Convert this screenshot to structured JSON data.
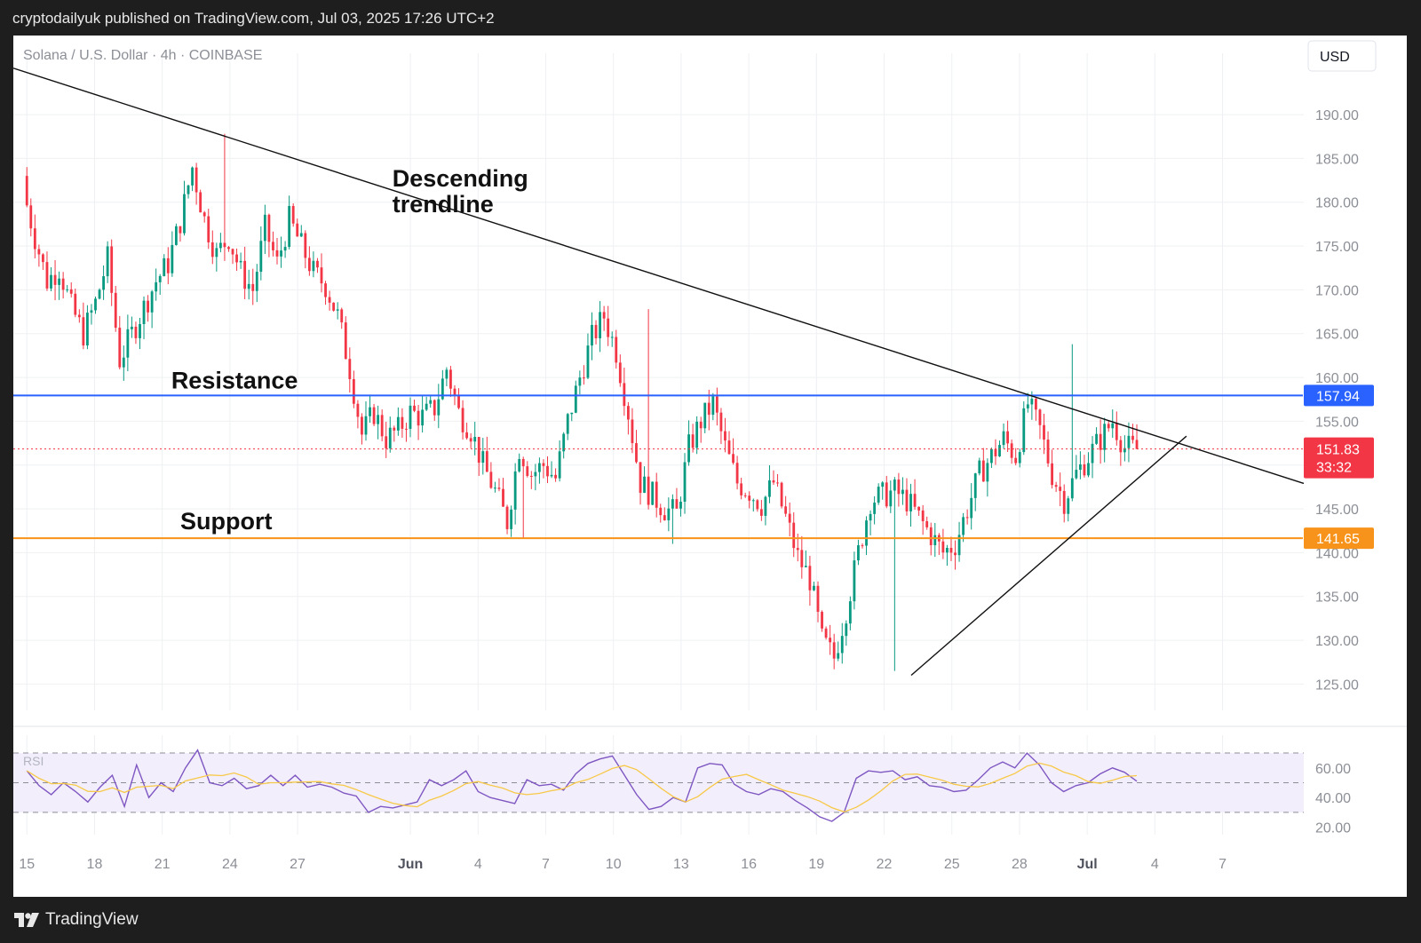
{
  "header": {
    "published_text": "cryptodailyuk published on TradingView.com, Jul 03, 2025 17:26 UTC+2"
  },
  "footer": {
    "brand": "TradingView"
  },
  "chart_data": {
    "type": "candlestick",
    "symbol_title": "Solana / U.S. Dollar · 4h · COINBASE",
    "currency_button": "USD",
    "price_axis": {
      "ylim": [
        122,
        197
      ],
      "ticks": [
        "190.00",
        "185.00",
        "180.00",
        "175.00",
        "170.00",
        "165.00",
        "160.00",
        "155.00",
        "150.00",
        "145.00",
        "140.00",
        "135.00",
        "130.00",
        "125.00"
      ],
      "tick_values": [
        190,
        185,
        180,
        175,
        170,
        165,
        160,
        155,
        150,
        145,
        140,
        135,
        130,
        125
      ]
    },
    "time_axis": {
      "labels": [
        "15",
        "18",
        "21",
        "24",
        "27",
        "Jun",
        "4",
        "7",
        "10",
        "13",
        "16",
        "19",
        "22",
        "25",
        "28",
        "Jul",
        "4",
        "7"
      ],
      "label_days": [
        0,
        3,
        6,
        9,
        12,
        17,
        20,
        23,
        26,
        29,
        32,
        35,
        38,
        41,
        44,
        47,
        50,
        53
      ],
      "bold_labels": [
        "Jun",
        "Jul"
      ],
      "day_range": [
        -0.6,
        56.6
      ],
      "start_date": "2025-05-15"
    },
    "current_price": {
      "value": 151.83,
      "label": "151.83",
      "countdown": "33:32",
      "color": "#f23645"
    },
    "levels": [
      {
        "name": "Resistance",
        "value": 157.94,
        "label": "157.94",
        "color": "#2962ff"
      },
      {
        "name": "Support",
        "value": 141.65,
        "label": "141.65",
        "color": "#f7931a"
      }
    ],
    "trendlines": [
      {
        "name": "Descending trendline",
        "points": [
          [
            -0.6,
            195.3
          ],
          [
            56.6,
            147.9
          ]
        ]
      },
      {
        "name": "Ascending trendline",
        "points": [
          [
            39.2,
            126
          ],
          [
            51.4,
            153.3
          ]
        ]
      }
    ],
    "annotations": [
      {
        "text": "Descending trendline",
        "lines": [
          "Descending",
          "trendline"
        ]
      },
      {
        "text": "Resistance"
      },
      {
        "text": "Support"
      }
    ],
    "ohlc_anchors": [
      [
        0,
        181.5
      ],
      [
        1,
        176
      ],
      [
        2,
        171
      ],
      [
        3,
        172.5
      ],
      [
        4,
        168
      ],
      [
        5,
        165
      ],
      [
        6,
        168.5
      ],
      [
        7,
        173.5
      ],
      [
        8,
        162
      ],
      [
        10,
        168
      ],
      [
        11,
        171
      ],
      [
        12,
        173
      ],
      [
        13,
        177.8
      ],
      [
        14,
        184
      ],
      [
        15,
        178
      ],
      [
        16,
        174
      ],
      [
        17,
        176
      ],
      [
        18,
        172
      ],
      [
        19,
        170
      ],
      [
        20,
        177
      ],
      [
        21,
        173
      ],
      [
        22,
        178
      ],
      [
        23,
        175
      ],
      [
        24,
        172
      ],
      [
        25,
        170.5
      ],
      [
        26,
        167
      ],
      [
        27,
        161
      ],
      [
        28,
        153.5
      ],
      [
        29,
        156
      ],
      [
        30,
        153
      ],
      [
        31,
        154
      ],
      [
        32,
        156
      ],
      [
        33,
        155.5
      ],
      [
        34,
        156.5
      ],
      [
        35,
        161
      ],
      [
        36,
        156
      ],
      [
        37,
        154
      ],
      [
        38,
        150
      ],
      [
        39,
        147
      ],
      [
        40,
        143.5
      ],
      [
        41,
        152
      ],
      [
        42,
        149
      ],
      [
        43,
        150
      ],
      [
        44,
        148.5
      ],
      [
        45,
        155
      ],
      [
        46,
        160
      ],
      [
        47,
        164.5
      ],
      [
        48,
        167
      ],
      [
        49,
        163
      ],
      [
        50,
        156
      ],
      [
        51,
        148
      ],
      [
        52,
        146.5
      ],
      [
        53,
        145
      ],
      [
        54,
        144.5
      ],
      [
        55,
        152
      ],
      [
        56,
        155
      ],
      [
        57,
        157
      ],
      [
        58,
        152
      ],
      [
        59,
        148
      ],
      [
        60,
        147
      ],
      [
        61,
        145.5
      ],
      [
        62,
        148
      ],
      [
        63,
        144
      ],
      [
        64,
        139.5
      ],
      [
        65,
        137
      ],
      [
        66,
        130
      ],
      [
        67,
        128
      ],
      [
        68,
        133.5
      ],
      [
        69,
        140
      ],
      [
        70,
        146
      ],
      [
        71,
        146.5
      ],
      [
        72,
        147
      ],
      [
        73,
        146
      ],
      [
        74,
        144
      ],
      [
        75,
        142
      ],
      [
        76,
        140
      ],
      [
        77,
        141
      ],
      [
        78,
        145
      ],
      [
        79,
        149
      ],
      [
        80,
        151
      ],
      [
        81,
        153
      ],
      [
        82,
        151
      ],
      [
        83,
        157
      ],
      [
        84,
        154
      ],
      [
        85,
        149
      ],
      [
        86,
        146
      ],
      [
        87,
        149
      ],
      [
        88,
        151
      ],
      [
        89,
        153
      ],
      [
        90,
        155
      ],
      [
        91,
        152
      ],
      [
        92,
        151.83
      ]
    ],
    "rsi": {
      "label": "RSI",
      "ylim": [
        15,
        82
      ],
      "ticks": [
        "60.00",
        "40.00",
        "20.00"
      ],
      "tick_values": [
        60,
        40,
        20
      ],
      "bands": [
        70,
        50,
        30
      ],
      "band_fill": "#f3eefc",
      "rsi_color": "#7e57c2",
      "ma_color": "#f7c948",
      "values": [
        58,
        48,
        42,
        50,
        44,
        37,
        47,
        55,
        34,
        62,
        40,
        50,
        44,
        60,
        72,
        50,
        48,
        53,
        46,
        48,
        55,
        48,
        55,
        47,
        49,
        47,
        43,
        41,
        30,
        34,
        33,
        35,
        37,
        52,
        48,
        52,
        58,
        44,
        40,
        38,
        36,
        52,
        48,
        49,
        45,
        56,
        63,
        66,
        68,
        55,
        42,
        32,
        34,
        40,
        37,
        60,
        63,
        62,
        49,
        44,
        42,
        46,
        44,
        38,
        33,
        27,
        24,
        30,
        53,
        58,
        57,
        58,
        52,
        54,
        48,
        47,
        44,
        45,
        52,
        60,
        64,
        60,
        70,
        62,
        50,
        44,
        48,
        50,
        56,
        60,
        57,
        51
      ]
    },
    "colors": {
      "up": "#089981",
      "down": "#f23645",
      "axis_text": "#8c8f96",
      "grid": "#eef0f3"
    }
  }
}
